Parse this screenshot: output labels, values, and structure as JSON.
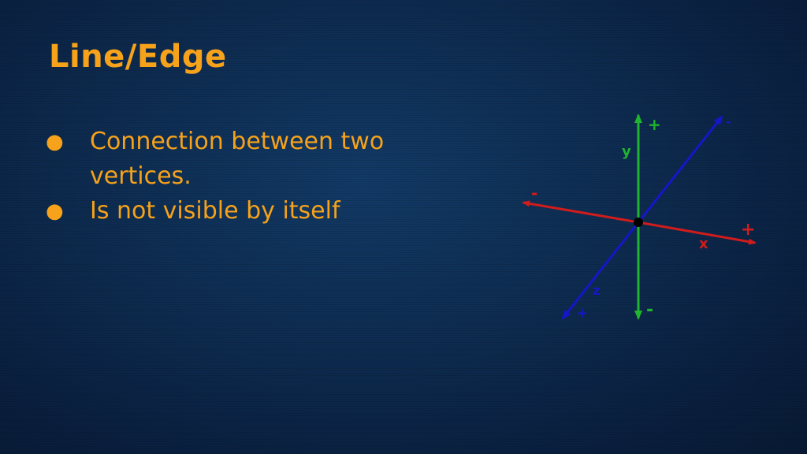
{
  "slide": {
    "title": "Line/Edge",
    "bullets": [
      "Connection between two vertices.",
      "Is not visible by itself"
    ]
  },
  "diagram": {
    "axes": {
      "x": {
        "label": "x",
        "plus": "+",
        "minus": "-",
        "color": "#d01c1c"
      },
      "y": {
        "label": "y",
        "plus": "+",
        "minus": "-",
        "color": "#1fb52f"
      },
      "z": {
        "label": "z",
        "plus": "+",
        "minus": "-",
        "color": "#1616c8"
      }
    },
    "origin_color": "#000000"
  },
  "colors": {
    "accent": "#f6a21a",
    "background": "#0d2b4f"
  }
}
